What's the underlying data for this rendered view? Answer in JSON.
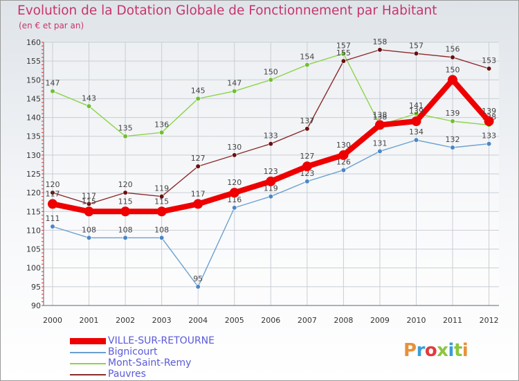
{
  "title": "Evolution de la Dotation Globale de Fonctionnement par Habitant",
  "subtitle": "(en € et par an)",
  "logo": {
    "text": "Proxiti",
    "letter_colors": [
      "#e8913a",
      "#3a9ed8",
      "#e23b3b",
      "#8cc63e",
      "#3a9ed8",
      "#8cc63e",
      "#e8913a"
    ]
  },
  "chart_data": {
    "type": "line",
    "title": "Evolution de la Dotation Globale de Fonctionnement par Habitant",
    "subtitle": "(en € et par an)",
    "xlabel": "",
    "ylabel": "",
    "ylim": [
      90,
      160
    ],
    "y_ticks": [
      90,
      95,
      100,
      105,
      110,
      115,
      120,
      125,
      130,
      135,
      140,
      145,
      150,
      155,
      160
    ],
    "grid": true,
    "legend_position": "bottom-left",
    "categories": [
      "2000",
      "2001",
      "2002",
      "2003",
      "2004",
      "2005",
      "2006",
      "2007",
      "2008",
      "2009",
      "2010",
      "2011",
      "2012"
    ],
    "series": [
      {
        "name": "Mont-Saint-Remy",
        "color": "#8cd44a",
        "marker_color": "#6ec030",
        "values": [
          147,
          143,
          135,
          136,
          145,
          147,
          150,
          154,
          157,
          138,
          141,
          139,
          138
        ]
      },
      {
        "name": "Bignicourt",
        "color": "#6aa0d0",
        "marker_color": "#4a86c6",
        "values": [
          111,
          108,
          108,
          108,
          95,
          116,
          119,
          123,
          126,
          131,
          134,
          132,
          133
        ]
      },
      {
        "name": "Pauvres",
        "color": "#8a2a2a",
        "marker_color": "#6a1010",
        "values": [
          120,
          117,
          120,
          119,
          127,
          130,
          133,
          137,
          155,
          158,
          157,
          156,
          153
        ]
      },
      {
        "name": "VILLE-SUR-RETOURNE",
        "color": "#ee0000",
        "marker_color": "#ee0000",
        "values": [
          117,
          115,
          115,
          115,
          117,
          120,
          123,
          127,
          130,
          138,
          139,
          150,
          139
        ]
      }
    ],
    "legend": [
      "VILLE-SUR-RETOURNE",
      "Bignicourt",
      "Mont-Saint-Remy",
      "Pauvres"
    ]
  }
}
